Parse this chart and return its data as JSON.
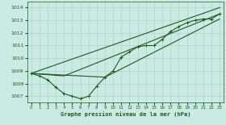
{
  "title": "Graphe pression niveau de la mer (hPa)",
  "background_color": "#cceae4",
  "grid_color": "#aad4cc",
  "line_color": "#1a5c1a",
  "xlim": [
    -0.5,
    23.5
  ],
  "ylim": [
    1006.5,
    1014.5
  ],
  "yticks": [
    1007,
    1008,
    1009,
    1010,
    1011,
    1012,
    1013,
    1014
  ],
  "xticks": [
    0,
    1,
    2,
    3,
    4,
    5,
    6,
    7,
    8,
    9,
    10,
    11,
    12,
    13,
    14,
    15,
    16,
    17,
    18,
    19,
    20,
    21,
    22,
    23
  ],
  "line1": {
    "x": [
      0,
      1,
      2,
      3,
      4,
      5,
      6,
      7,
      8,
      9,
      10,
      11,
      12,
      13,
      14,
      15,
      16,
      17,
      18,
      19,
      20,
      21,
      22,
      23
    ],
    "y": [
      1008.8,
      1008.6,
      1008.3,
      1007.7,
      1007.2,
      1007.0,
      1006.8,
      1007.0,
      1007.8,
      1008.5,
      1009.0,
      1010.1,
      1010.5,
      1010.9,
      1011.0,
      1011.0,
      1011.5,
      1012.1,
      1012.5,
      1012.8,
      1013.0,
      1013.1,
      1013.1,
      1013.5
    ]
  },
  "line2": {
    "comment": "straight-ish from 0,1008.8 to 23,1014.0",
    "x": [
      0,
      23
    ],
    "y": [
      1008.8,
      1014.0
    ]
  },
  "line3": {
    "x": [
      0,
      4,
      23
    ],
    "y": [
      1008.8,
      1008.6,
      1013.5
    ]
  },
  "line4": {
    "x": [
      0,
      9,
      23
    ],
    "y": [
      1008.8,
      1008.5,
      1013.1
    ]
  }
}
